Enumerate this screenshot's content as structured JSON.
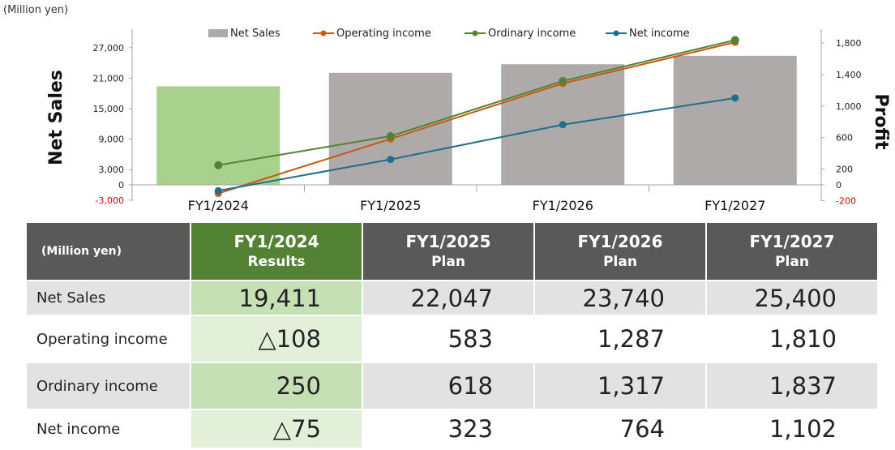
{
  "chart_data": {
    "type": "bar+line",
    "unit_label": "(Million yen)",
    "categories": [
      "FY1/2024",
      "FY1/2025",
      "FY1/2026",
      "FY1/2027"
    ],
    "left_axis": {
      "label": "Net Sales",
      "ylim": [
        -3000,
        30000
      ],
      "ticks": [
        -3000,
        0,
        3000,
        9000,
        15000,
        21000,
        27000
      ],
      "tick_labels": [
        "-3,000",
        "0",
        "3,000",
        "9,000",
        "15,000",
        "21,000",
        "27,000"
      ]
    },
    "right_axis": {
      "label": "Profit",
      "ylim": [
        -200,
        2000
      ],
      "ticks": [
        -200,
        0,
        200,
        600,
        1000,
        1400,
        1800
      ],
      "tick_labels": [
        "-200",
        "0",
        "200",
        "600",
        "1,000",
        "1,400",
        "1,800"
      ]
    },
    "bar_series": {
      "name": "Net Sales",
      "values": [
        19411,
        22047,
        23740,
        25400
      ],
      "colors": [
        "#a9d18e",
        "#aeaaaa",
        "#aeaaaa",
        "#aeaaaa"
      ]
    },
    "line_series": [
      {
        "name": "Operating income",
        "values": [
          -108,
          583,
          1287,
          1810
        ],
        "color": "#c55a11"
      },
      {
        "name": "Ordinary income",
        "values": [
          250,
          618,
          1317,
          1837
        ],
        "color": "#548235"
      },
      {
        "name": "Net income",
        "values": [
          -75,
          323,
          764,
          1102
        ],
        "color": "#1f6e8c"
      }
    ],
    "legend_position": "top"
  },
  "table": {
    "unit_label": "(Million yen)",
    "columns": [
      {
        "year": "FY1/2024",
        "kind": "Results",
        "highlight": true
      },
      {
        "year": "FY1/2025",
        "kind": "Plan",
        "highlight": false
      },
      {
        "year": "FY1/2026",
        "kind": "Plan",
        "highlight": false
      },
      {
        "year": "FY1/2027",
        "kind": "Plan",
        "highlight": false
      }
    ],
    "rows": [
      {
        "label": "Net Sales",
        "values": [
          "19,411",
          "22,047",
          "23,740",
          "25,400"
        ]
      },
      {
        "label": "Operating income",
        "values": [
          "△108",
          "583",
          "1,287",
          "1,810"
        ]
      },
      {
        "label": "Ordinary income",
        "values": [
          "250",
          "618",
          "1,317",
          "1,837"
        ]
      },
      {
        "label": "Net income",
        "values": [
          "△75",
          "323",
          "764",
          "1,102"
        ]
      }
    ]
  }
}
